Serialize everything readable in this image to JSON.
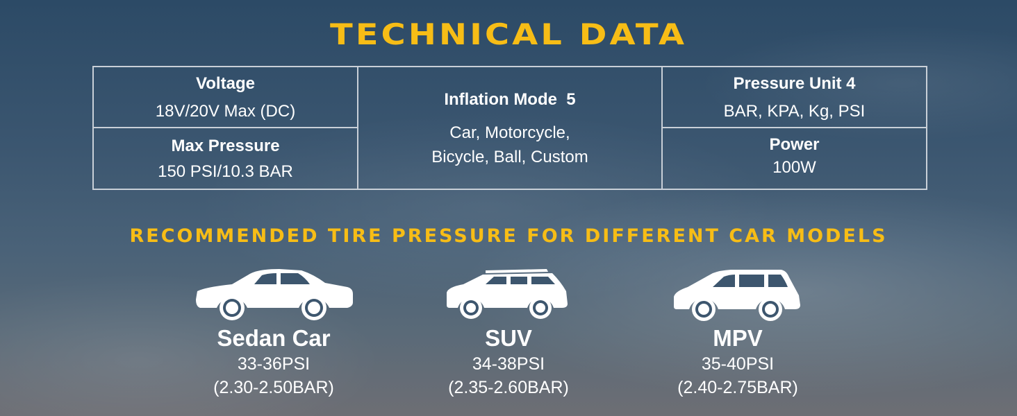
{
  "title": "TECHNICAL DATA",
  "specs": {
    "voltage": {
      "label": "Voltage",
      "value": "18V/20V Max (DC)"
    },
    "max_pressure": {
      "label": "Max Pressure",
      "value": "150 PSI/10.3 BAR"
    },
    "inflation_mode": {
      "label": "Inflation Mode  5",
      "value_line1": "Car, Motorcycle,",
      "value_line2": "Bicycle, Ball, Custom"
    },
    "pressure_unit": {
      "label": "Pressure Unit 4",
      "value": "BAR, KPA, Kg, PSI"
    },
    "power": {
      "label": "Power",
      "value": "100W"
    }
  },
  "subtitle": "RECOMMENDED TIRE PRESSURE FOR DIFFERENT CAR MODELS",
  "models": [
    {
      "icon": "sedan-car-icon",
      "name": "Sedan Car",
      "psi": "33-36PSI",
      "bar": "(2.30-2.50BAR)"
    },
    {
      "icon": "suv-icon",
      "name": "SUV",
      "psi": "34-38PSI",
      "bar": "(2.35-2.60BAR)"
    },
    {
      "icon": "mpv-icon",
      "name": "MPV",
      "psi": "35-40PSI",
      "bar": "(2.40-2.75BAR)"
    }
  ],
  "colors": {
    "accent": "#f7bd16",
    "text": "#ffffff",
    "border": "#c9d0d8",
    "sky_top": "#2c4a66",
    "sky_bottom": "#6d6e74"
  }
}
